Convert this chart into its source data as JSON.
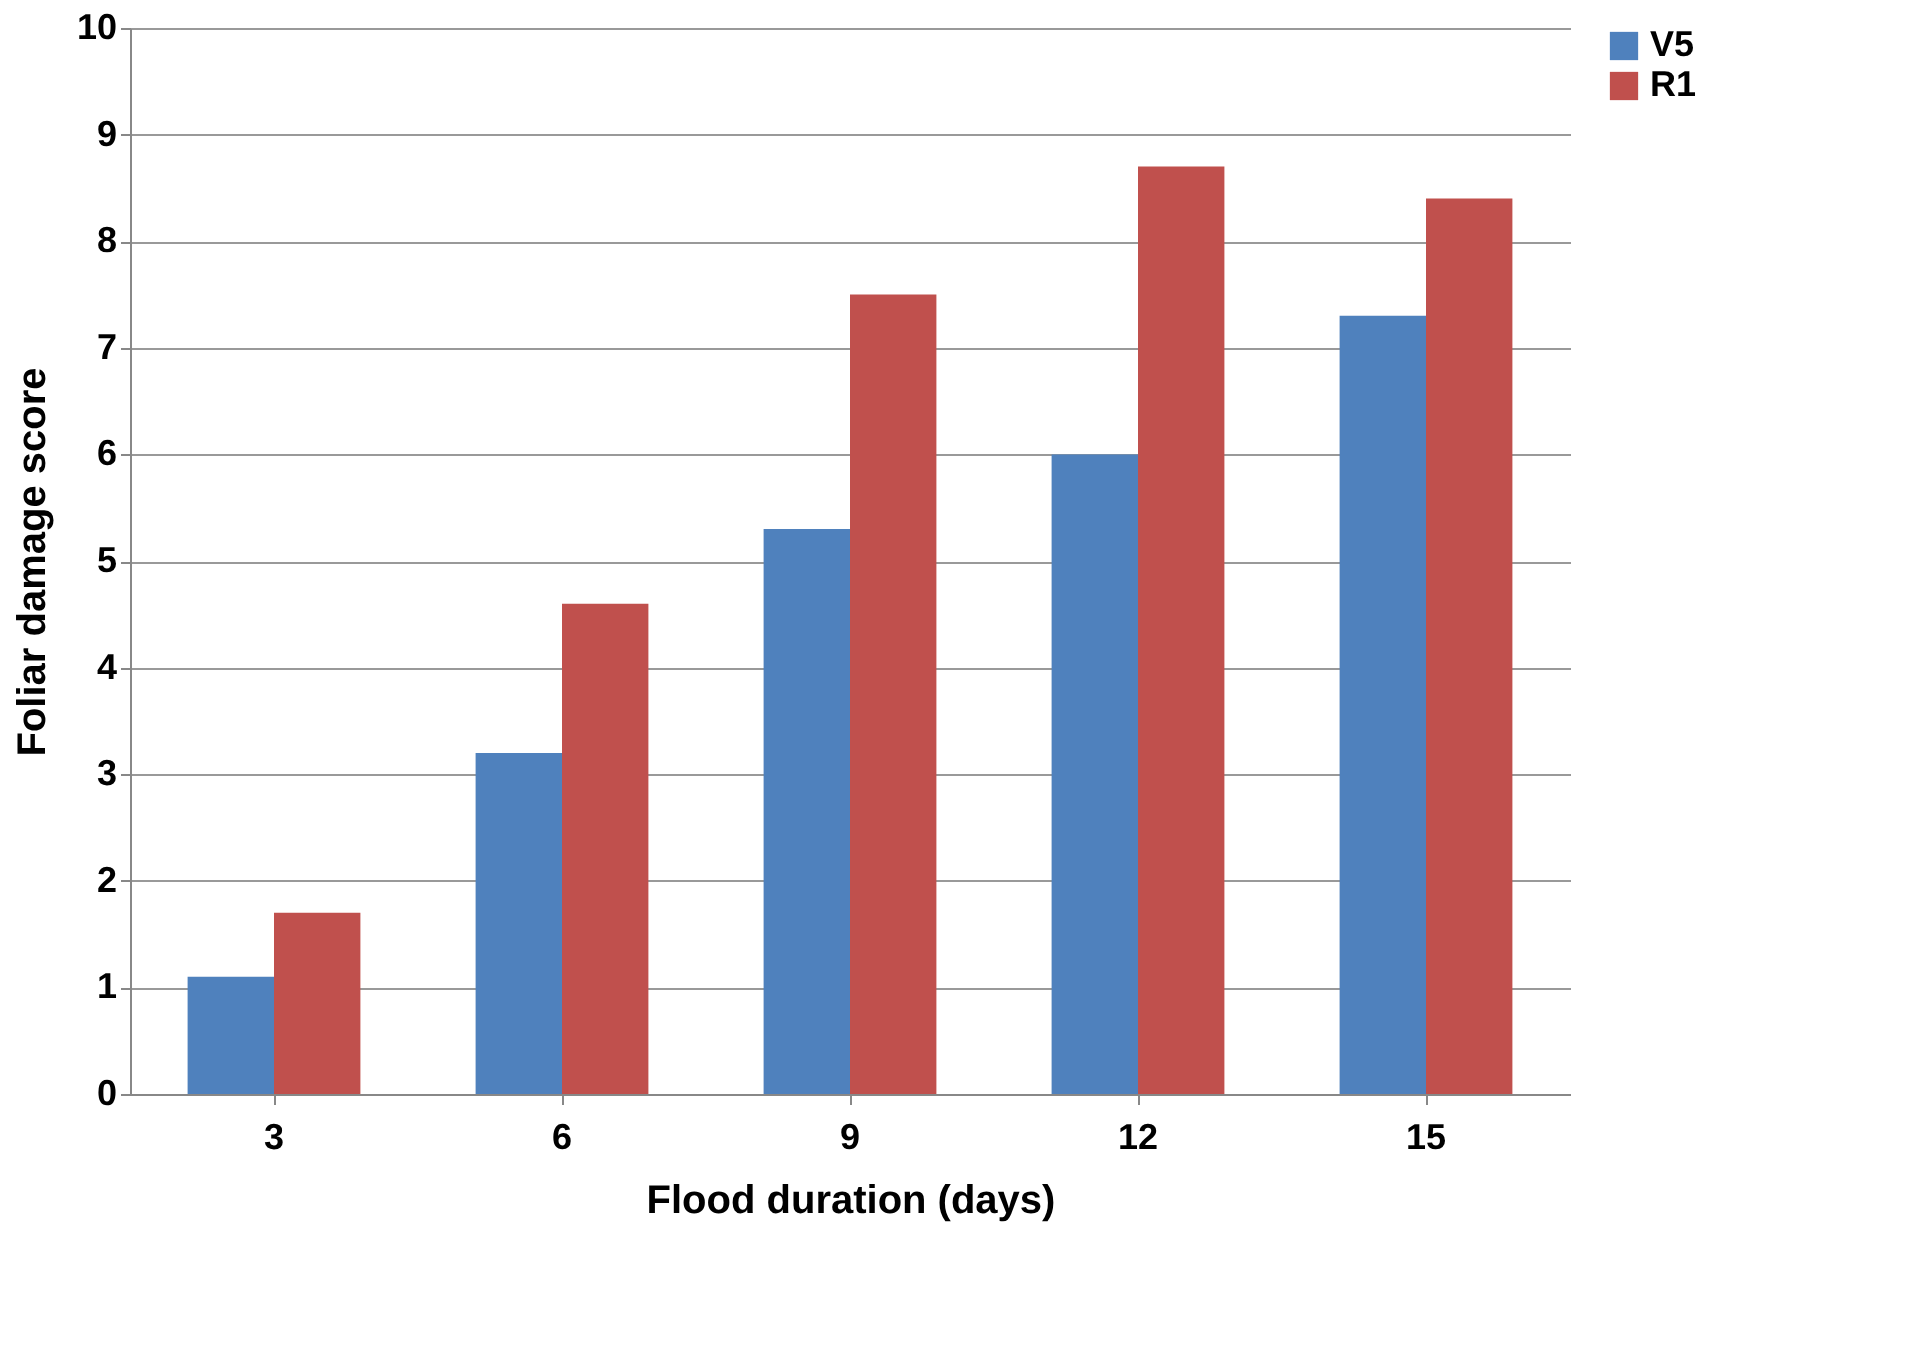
{
  "chart_data": {
    "type": "bar",
    "xlabel": "Flood duration (days)",
    "ylabel": "Foliar damage score",
    "categories": [
      "3",
      "6",
      "9",
      "12",
      "15"
    ],
    "series": [
      {
        "name": "V5",
        "color": "#4f81bd",
        "values": [
          1.1,
          3.2,
          5.3,
          6.0,
          7.3
        ]
      },
      {
        "name": "R1",
        "color": "#c0504d",
        "values": [
          1.7,
          4.6,
          7.5,
          8.7,
          8.4
        ]
      }
    ],
    "ylim": [
      0,
      10
    ],
    "yticks": [
      0,
      1,
      2,
      3,
      4,
      5,
      6,
      7,
      8,
      9,
      10
    ],
    "grid": "y",
    "legend": "right"
  }
}
